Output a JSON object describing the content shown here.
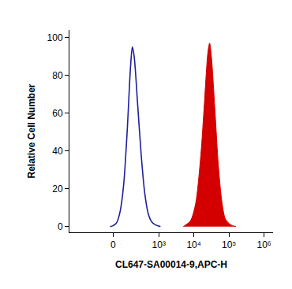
{
  "chart_data": {
    "type": "line",
    "x_label": "CL647-SA00014-9,APC-H",
    "y_label": "Relative Cell Number",
    "xlim": [
      -870,
      1800000
    ],
    "xticks": [
      0,
      {
        "value": 1000,
        "label": "10³"
      },
      {
        "value": 10000,
        "label": "10⁴"
      },
      {
        "value": 100000,
        "label": "10⁵"
      },
      {
        "value": 1000000,
        "label": "10⁶"
      }
    ],
    "ylim": [
      -3,
      104
    ],
    "yticks": [
      0,
      20,
      40,
      60,
      80,
      100
    ],
    "grid": false,
    "series": [
      {
        "type": "line",
        "color": "#1f1f9e",
        "x": [
          -20,
          0,
          23,
          48,
          75,
          106,
          142,
          163,
          187,
          240,
          308,
          391,
          495,
          626,
          788,
          1117
        ],
        "values": [
          0,
          0.5,
          2,
          8,
          22,
          50,
          85,
          95,
          90,
          65,
          38,
          18,
          7,
          2.5,
          1,
          0
        ]
      },
      {
        "type": "area",
        "color": "#d40000",
        "x": [
          5000,
          7930,
          11190,
          15810,
          19900,
          25050,
          28100,
          31540,
          39700,
          50000,
          62950,
          79250,
          112000,
          158100
        ],
        "values": [
          0,
          3,
          12,
          38,
          65,
          92,
          97,
          90,
          62,
          32,
          13,
          4,
          1,
          0
        ]
      }
    ]
  }
}
